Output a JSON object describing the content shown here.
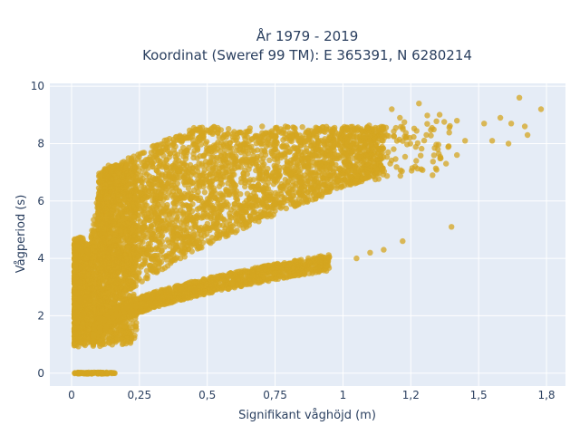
{
  "chart_data": {
    "type": "scatter",
    "title_line1": "År 1979 - 2019",
    "title_line2": "Koordinat (Sweref 99 TM): E 365391, N 6280214",
    "xlabel": "Signifikant våghöjd (m)",
    "ylabel": "Vågperiod (s)",
    "xlim": [
      -0.08,
      1.82
    ],
    "ylim": [
      -0.45,
      10.1
    ],
    "x_ticks": [
      0,
      0.25,
      0.5,
      0.75,
      1,
      1.25,
      1.5,
      1.75
    ],
    "x_tick_labels": [
      "0",
      "0,25",
      "0,5",
      "0,75",
      "1",
      "1,2",
      "1,5",
      "1,8"
    ],
    "y_ticks": [
      0,
      2,
      4,
      6,
      8,
      10
    ],
    "y_tick_labels": [
      "0",
      "2",
      "4",
      "6",
      "8",
      "10"
    ],
    "grid": true,
    "point_color": "#d4a520",
    "background_color": "#e5ecf6",
    "clusters": {
      "zero_period_band": {
        "x_range": [
          0.01,
          0.16
        ],
        "y": 0
      },
      "wind_sea_band": {
        "x_range": [
          0.08,
          1.3
        ],
        "y_range": [
          1.1,
          3.9
        ]
      },
      "swell_cloud": {
        "x_range": [
          0.05,
          1.35
        ],
        "y_range": [
          1.5,
          8.6
        ]
      }
    },
    "points": [
      [
        1.65,
        9.6
      ],
      [
        1.73,
        9.2
      ],
      [
        1.42,
        8.8
      ],
      [
        1.58,
        8.9
      ],
      [
        1.62,
        8.7
      ],
      [
        1.67,
        8.6
      ],
      [
        1.52,
        8.7
      ],
      [
        1.55,
        8.1
      ],
      [
        1.61,
        8.0
      ],
      [
        1.68,
        8.3
      ],
      [
        1.38,
        7.3
      ],
      [
        1.42,
        7.6
      ],
      [
        1.27,
        7.4
      ],
      [
        1.35,
        7.8
      ],
      [
        1.45,
        8.1
      ],
      [
        1.33,
        6.9
      ],
      [
        1.4,
        5.1
      ],
      [
        1.22,
        4.6
      ],
      [
        1.15,
        4.3
      ],
      [
        1.05,
        4.0
      ],
      [
        1.1,
        4.2
      ],
      [
        1.18,
        9.2
      ],
      [
        1.21,
        8.9
      ],
      [
        1.28,
        9.4
      ],
      [
        1.1,
        8.1
      ]
    ]
  }
}
